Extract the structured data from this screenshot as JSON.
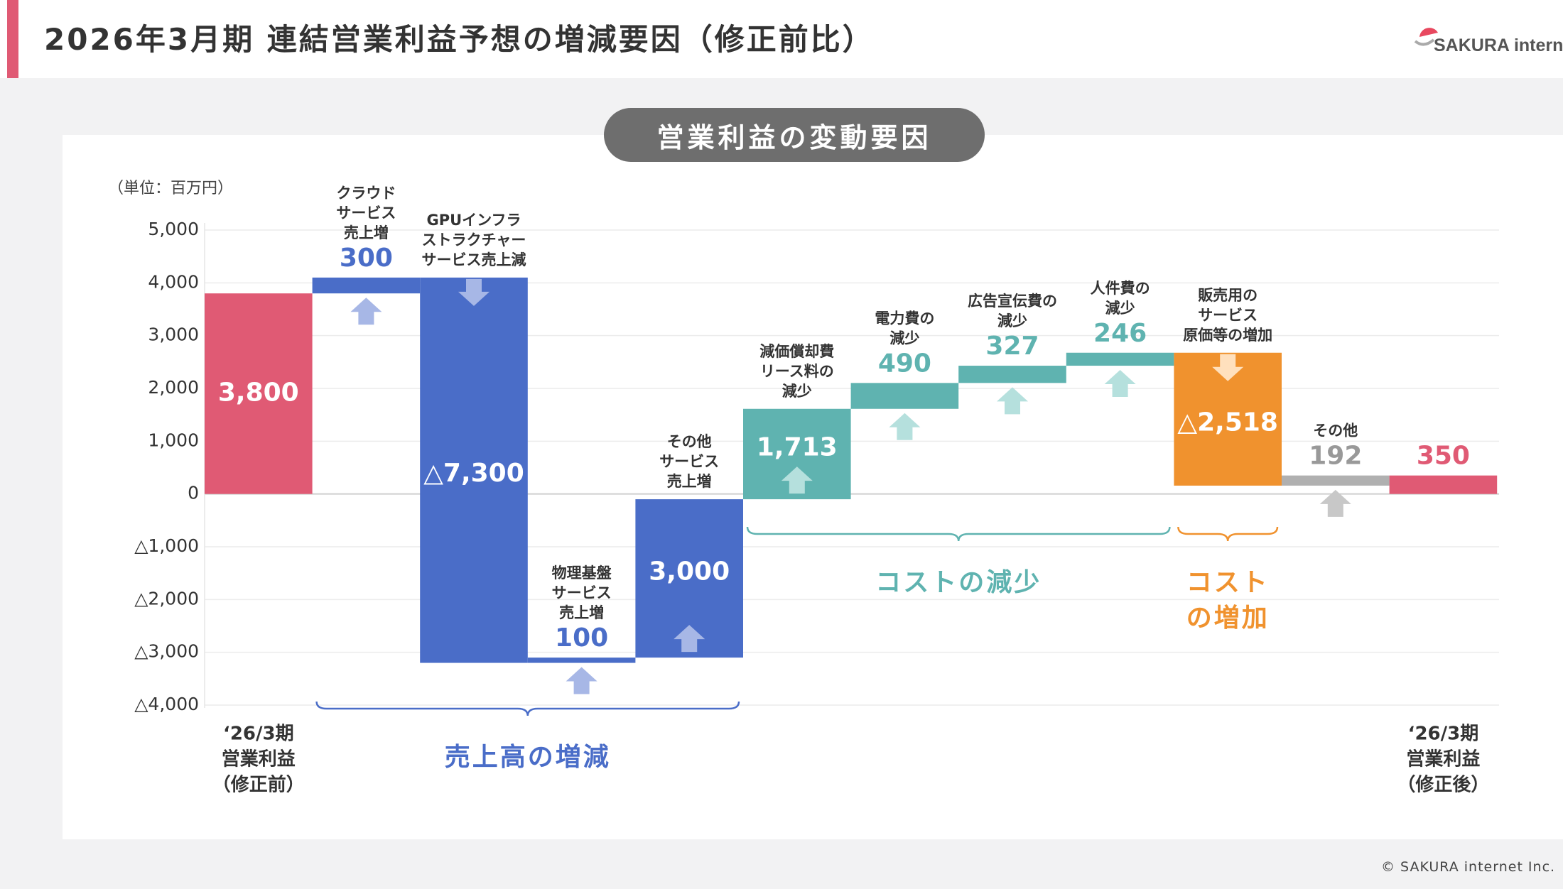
{
  "header": {
    "title": "2026年3月期 連結営業利益予想の増減要因（修正前比）",
    "logo_text": "SAKURA intern"
  },
  "panel": {
    "subtitle": "営業利益の変動要因"
  },
  "footer": {
    "copyright": "© SAKURA internet Inc."
  },
  "colors": {
    "accent": "#e05a74",
    "sales_blue": "#4a6dc8",
    "cost_teal": "#5fb3b0",
    "cost_orange": "#f0922e",
    "other_gray": "#b0b0b0",
    "arrow_blue": "#a7b7e6",
    "arrow_teal": "#b5e0dd",
    "arrow_orange": "#ffe0bd",
    "arrow_gray": "#c8c8c8"
  },
  "chart_data": {
    "type": "waterfall",
    "unit_label": "（単位：百万円）",
    "ylim": [
      -4000,
      5000
    ],
    "y_ticks": [
      {
        "value": 5000,
        "label": "5,000"
      },
      {
        "value": 4000,
        "label": "4,000"
      },
      {
        "value": 3000,
        "label": "3,000"
      },
      {
        "value": 2000,
        "label": "2,000"
      },
      {
        "value": 1000,
        "label": "1,000"
      },
      {
        "value": 0,
        "label": "0"
      },
      {
        "value": -1000,
        "label": "△1,000"
      },
      {
        "value": -2000,
        "label": "△2,000"
      },
      {
        "value": -3000,
        "label": "△3,000"
      },
      {
        "value": -4000,
        "label": "△4,000"
      }
    ],
    "grid": true,
    "bars": [
      {
        "kind": "total",
        "base": 0,
        "value": 3800,
        "label": "3,800",
        "label_inside": true,
        "desc": [],
        "axis_label": [
          "‘26/3期",
          "営業利益",
          "（修正前）"
        ],
        "color": "accent"
      },
      {
        "kind": "delta",
        "base": 3800,
        "value": 300,
        "label": "300",
        "label_inside": false,
        "desc": [
          "クラウド",
          "サービス",
          "売上増"
        ],
        "color": "sales_blue",
        "arrow": "up"
      },
      {
        "kind": "delta",
        "base": 4100,
        "value": -7300,
        "label": "△7,300",
        "label_inside": true,
        "desc": [
          "GPUインフラ",
          "ストラクチャー",
          "サービス売上減"
        ],
        "color": "sales_blue",
        "arrow": "down"
      },
      {
        "kind": "delta",
        "base": -3200,
        "value": 100,
        "label": "100",
        "label_inside": false,
        "desc": [
          "物理基盤",
          "サービス",
          "売上増"
        ],
        "color": "sales_blue",
        "arrow": "up"
      },
      {
        "kind": "delta",
        "base": -3100,
        "value": 3000,
        "label": "3,000",
        "label_inside": true,
        "desc": [
          "その他",
          "サービス",
          "売上増"
        ],
        "color": "sales_blue",
        "arrow": "up"
      },
      {
        "kind": "delta",
        "base": -100,
        "value": 1713,
        "label": "1,713",
        "label_inside": true,
        "desc": [
          "減価償却費",
          "リース料の",
          "減少"
        ],
        "color": "cost_teal",
        "arrow": "up"
      },
      {
        "kind": "delta",
        "base": 1613,
        "value": 490,
        "label": "490",
        "label_inside": false,
        "desc": [
          "電力費の",
          "減少"
        ],
        "color": "cost_teal",
        "arrow": "up"
      },
      {
        "kind": "delta",
        "base": 2103,
        "value": 327,
        "label": "327",
        "label_inside": false,
        "desc": [
          "広告宣伝費の",
          "減少"
        ],
        "color": "cost_teal",
        "arrow": "up"
      },
      {
        "kind": "delta",
        "base": 2430,
        "value": 246,
        "label": "246",
        "label_inside": false,
        "desc": [
          "人件費の",
          "減少"
        ],
        "color": "cost_teal",
        "arrow": "up"
      },
      {
        "kind": "delta",
        "base": 2676,
        "value": -2518,
        "label": "△2,518",
        "label_inside": true,
        "desc": [
          "販売用の",
          "サービス",
          "原価等の増加"
        ],
        "color": "cost_orange",
        "arrow": "down"
      },
      {
        "kind": "delta",
        "base": 158,
        "value": 192,
        "label": "192",
        "label_inside": false,
        "desc": [
          "その他"
        ],
        "color": "other_gray",
        "arrow": "up"
      },
      {
        "kind": "total",
        "base": 0,
        "value": 350,
        "label": "350",
        "label_inside": false,
        "desc": [],
        "axis_label": [
          "‘26/3期",
          "営業利益",
          "（修正後）"
        ],
        "color": "accent"
      }
    ],
    "groups": [
      {
        "label": [
          "売上高の増減"
        ],
        "from": 1,
        "to": 4,
        "color": "sales_blue"
      },
      {
        "label": [
          "コストの減少"
        ],
        "from": 5,
        "to": 8,
        "color": "cost_teal"
      },
      {
        "label": [
          "コスト",
          "の増加"
        ],
        "from": 9,
        "to": 9,
        "color": "cost_orange"
      }
    ]
  }
}
